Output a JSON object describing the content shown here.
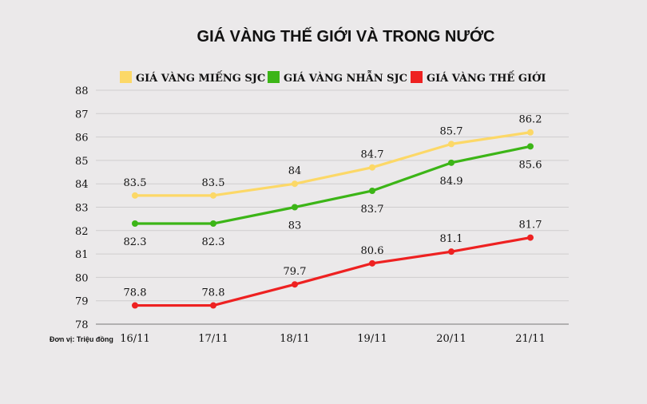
{
  "chart_data": {
    "type": "line",
    "title": "GIÁ VÀNG THẾ GIỚI VÀ TRONG NƯỚC",
    "unit_label": "Đơn vị: Triệu đồng",
    "categories": [
      "16/11",
      "17/11",
      "18/11",
      "19/11",
      "20/11",
      "21/11"
    ],
    "yticks": [
      78,
      79,
      80,
      81,
      82,
      83,
      84,
      85,
      86,
      87,
      88
    ],
    "ylim": [
      78,
      88
    ],
    "grid": true,
    "legend_position": "top",
    "series": [
      {
        "name": "GIÁ VÀNG MIẾNG SJC",
        "color": "#fcd867",
        "values": [
          83.5,
          83.5,
          84,
          84.7,
          85.7,
          86.2
        ],
        "labels": [
          "83.5",
          "83.5",
          "84",
          "84.7",
          "85.7",
          "86.2"
        ],
        "label_side": "above"
      },
      {
        "name": "GIÁ VÀNG NHẪN SJC",
        "color": "#3cb517",
        "values": [
          82.3,
          82.3,
          83,
          83.7,
          84.9,
          85.6
        ],
        "labels": [
          "82.3",
          "82.3",
          "83",
          "83.7",
          "84.9",
          "85.6"
        ],
        "label_side": "below"
      },
      {
        "name": "GIÁ VÀNG THẾ GIỚI",
        "color": "#ee2121",
        "values": [
          78.8,
          78.8,
          79.7,
          80.6,
          81.1,
          81.7
        ],
        "labels": [
          "78.8",
          "78.8",
          "79.7",
          "80.6",
          "81.1",
          "81.7"
        ],
        "label_side": "above"
      }
    ]
  }
}
